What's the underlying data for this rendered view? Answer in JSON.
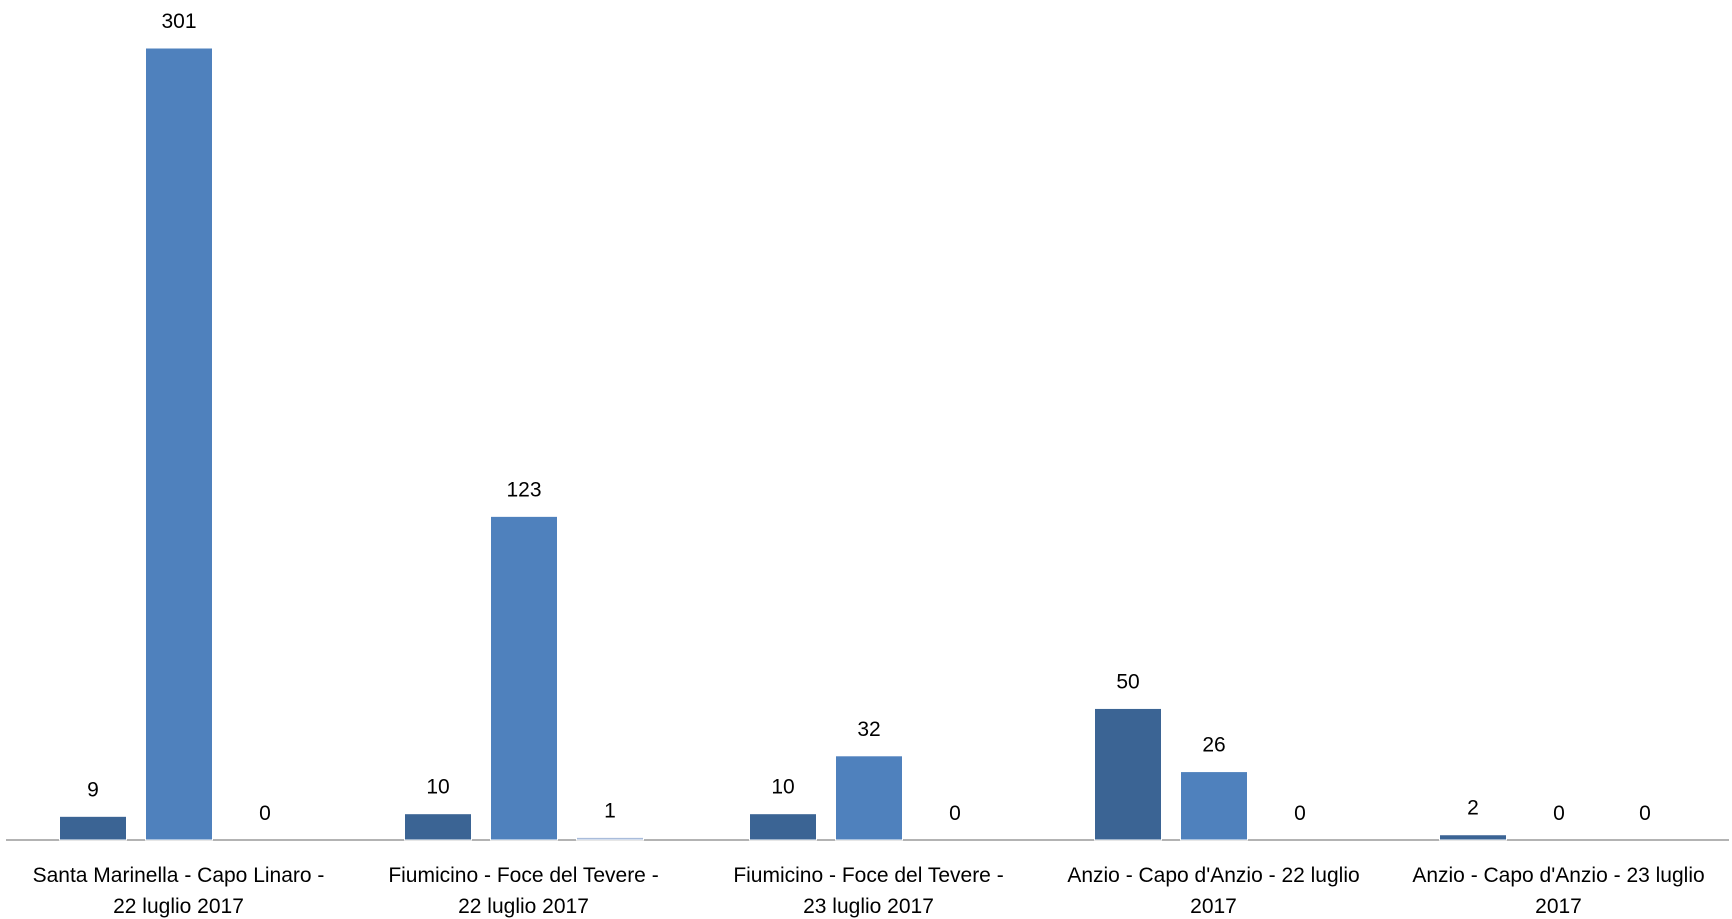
{
  "chart_data": {
    "type": "bar",
    "title": "",
    "xlabel": "",
    "ylabel": "",
    "ylim": [
      0,
      301
    ],
    "grid": false,
    "legend": "none",
    "categories": [
      [
        "Santa Marinella - Capo Linaro -",
        "22 luglio 2017"
      ],
      [
        "Fiumicino - Foce del Tevere -",
        "22 luglio 2017"
      ],
      [
        "Fiumicino - Foce del Tevere -",
        "23 luglio 2017"
      ],
      [
        "Anzio - Capo d'Anzio - 22 luglio",
        "2017"
      ],
      [
        "Anzio - Capo d'Anzio - 23 luglio",
        "2017"
      ]
    ],
    "series": [
      {
        "values": [
          9,
          10,
          10,
          50,
          2
        ],
        "color": "#3B6494"
      },
      {
        "values": [
          301,
          123,
          32,
          26,
          0
        ],
        "color": "#4F81BD"
      },
      {
        "values": [
          0,
          1,
          0,
          0,
          0
        ],
        "color": "#A9BCDB"
      }
    ]
  }
}
